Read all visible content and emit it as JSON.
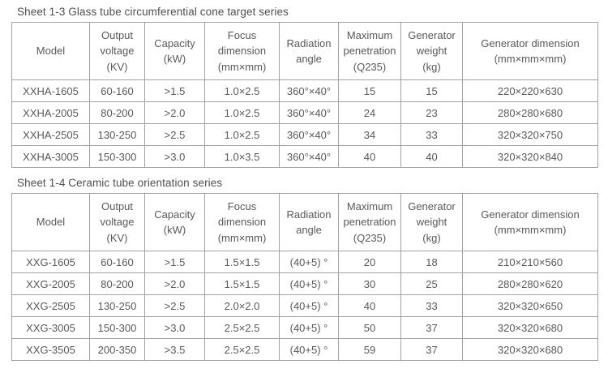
{
  "colors": {
    "text": "#595959",
    "border": "#a2a2a2",
    "background": "#ffffff"
  },
  "tables": [
    {
      "title": "Sheet 1-3 Glass tube circumferential cone target series",
      "headers": [
        "Model",
        "Output\nvoltage\n(KV)",
        "Capacity\n(kW)",
        "Focus\ndimension\n(mm×mm)",
        "Radiation\nangle",
        "Maximum\npenetration\n(Q235)",
        "Generator\nweight\n(kg)",
        "Generator dimension\n(mm×mm×mm)"
      ],
      "rows": [
        [
          "XXHA-1605",
          "60-160",
          ">1.5",
          "1.0×2.5",
          "360°×40°",
          "15",
          "15",
          "220×220×630"
        ],
        [
          "XXHA-2005",
          "80-200",
          ">2.0",
          "1.0×2.5",
          "360°×40°",
          "24",
          "23",
          "280×280×680"
        ],
        [
          "XXHA-2505",
          "130-250",
          ">2.5",
          "1.0×2.5",
          "360°×40°",
          "34",
          "33",
          "320×320×750"
        ],
        [
          "XXHA-3005",
          "150-300",
          ">3.0",
          "1.0×3.5",
          "360°×40°",
          "40",
          "40",
          "320×320×840"
        ]
      ]
    },
    {
      "title": "Sheet 1-4 Ceramic tube orientation series",
      "headers": [
        "Model",
        "Output\nvoltage\n(KV)",
        "Capacity\n(kW)",
        "Focus\ndimension\n(mm×mm)",
        "Radiation\nangle",
        "Maximum\npenetration\n(Q235)",
        "Generator\nweight\n(kg)",
        "Generator dimension\n(mm×mm×mm)"
      ],
      "rows": [
        [
          "XXG-1605",
          "60-160",
          ">1.5",
          "1.5×1.5",
          "(40+5) °",
          "20",
          "18",
          "210×210×560"
        ],
        [
          "XXG-2005",
          "80-200",
          ">2.0",
          "1.5×1.5",
          "(40+5) °",
          "30",
          "25",
          "280×280×620"
        ],
        [
          "XXG-2505",
          "130-250",
          ">2.5",
          "2.0×2.0",
          "(40+5) °",
          "40",
          "33",
          "320×320×650"
        ],
        [
          "XXG-3005",
          "150-300",
          ">3.0",
          "2.5×2.5",
          "(40+5) °",
          "50",
          "37",
          "320×320×680"
        ],
        [
          "XXG-3505",
          "200-350",
          ">3.5",
          "2.5×2.5",
          "(40+5) °",
          "59",
          "37",
          "320×320×680"
        ]
      ]
    }
  ]
}
